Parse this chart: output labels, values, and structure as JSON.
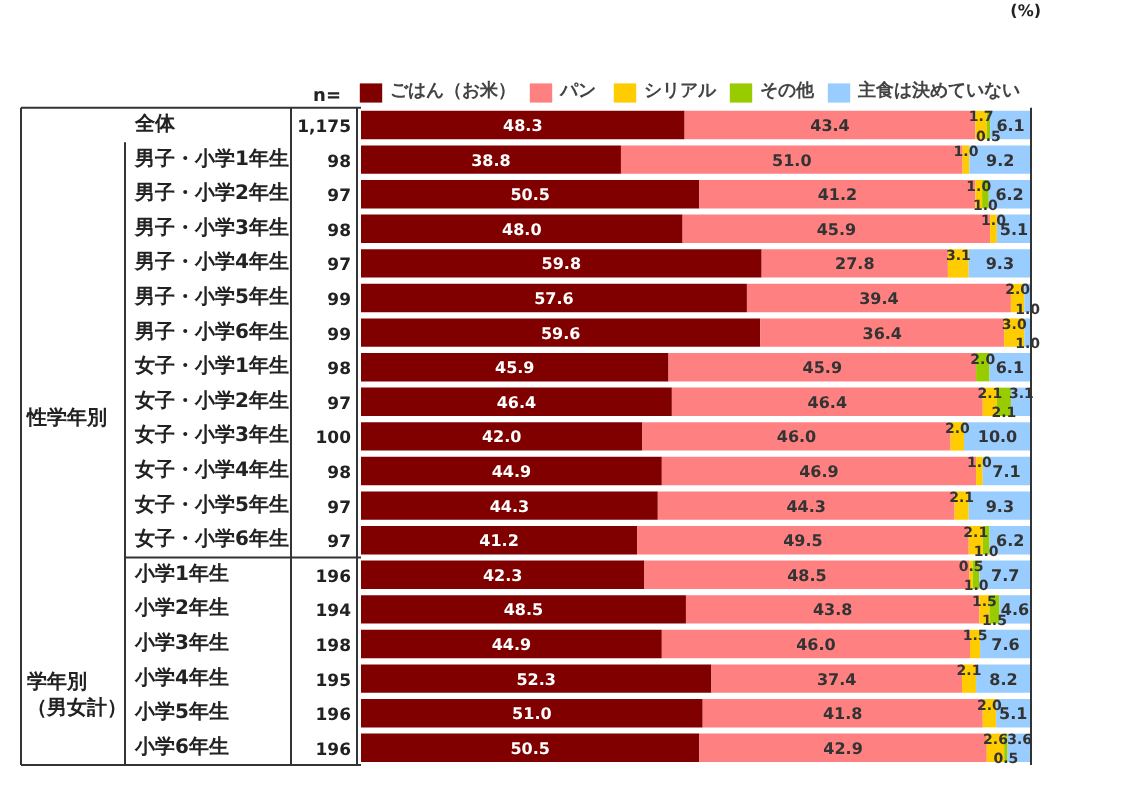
{
  "chart_data": {
    "type": "bar",
    "orientation": "horizontal",
    "stacked": true,
    "legend": "top",
    "grid": false,
    "tick_labels": false,
    "categories": [
      "全体",
      "男子・小学1年生",
      "男子・小学2年生",
      "男子・小学3年生",
      "男子・小学4年生",
      "男子・小学5年生",
      "男子・小学6年生",
      "女子・小学1年生",
      "女子・小学2年生",
      "女子・小学3年生",
      "女子・小学4年生",
      "女子・小学5年生",
      "女子・小学6年生",
      "小学1年生",
      "小学2年生",
      "小学3年生",
      "小学4年生",
      "小学5年生",
      "小学6年生"
    ],
    "xlim": [
      0,
      100
    ],
    "series": [
      {
        "name": "ごはん（お米）",
        "color": "#800000",
        "values": [
          48.3,
          38.8,
          50.5,
          48.0,
          59.8,
          57.6,
          59.6,
          45.9,
          46.4,
          42.0,
          44.9,
          44.3,
          41.2,
          42.3,
          48.5,
          44.9,
          52.3,
          51.0,
          50.5
        ],
        "value_labels": [
          "48.3",
          "38.8",
          "50.5",
          "48.0",
          "59.8",
          "57.6",
          "59.6",
          "45.9",
          "46.4",
          "42.0",
          "44.9",
          "44.3",
          "41.2",
          "42.3",
          "48.5",
          "44.9",
          "52.3",
          "51.0",
          "50.5"
        ]
      },
      {
        "name": "パン",
        "color": "#ff8080",
        "values": [
          43.4,
          51.0,
          41.2,
          45.9,
          27.8,
          39.4,
          36.4,
          45.9,
          46.4,
          46.0,
          46.9,
          44.3,
          49.5,
          48.5,
          43.8,
          46.0,
          37.4,
          41.8,
          42.9
        ],
        "value_labels": [
          "43.4",
          "51.0",
          "41.2",
          "45.9",
          "27.8",
          "39.4",
          "36.4",
          "45.9",
          "46.4",
          "46.0",
          "46.9",
          "44.3",
          "49.5",
          "48.5",
          "43.8",
          "46.0",
          "37.4",
          "41.8",
          "42.9"
        ]
      },
      {
        "name": "シリアル",
        "color": "#ffcc00",
        "values": [
          1.7,
          1.0,
          1.0,
          1.0,
          3.1,
          2.0,
          3.0,
          null,
          2.1,
          2.0,
          1.0,
          2.1,
          2.1,
          0.5,
          1.5,
          1.5,
          2.1,
          2.0,
          2.6
        ],
        "value_labels": [
          "1.7",
          "1.0",
          "1.0",
          "1.0",
          "3.1",
          "2.0",
          "3.0",
          null,
          "2.1",
          "2.0",
          "1.0",
          "2.1",
          "2.1",
          "0.5",
          "1.5",
          "1.5",
          "2.1",
          "2.0",
          "2.6"
        ]
      },
      {
        "name": "その他",
        "color": "#99cc00",
        "values": [
          0.5,
          null,
          1.0,
          null,
          null,
          null,
          null,
          2.0,
          2.1,
          null,
          null,
          null,
          1.0,
          1.0,
          1.5,
          null,
          null,
          null,
          0.5
        ],
        "value_labels": [
          "0.5",
          null,
          "1.0",
          null,
          null,
          null,
          null,
          "2.0",
          "2.1",
          null,
          null,
          null,
          "1.0",
          "1.0",
          "1.5",
          null,
          null,
          null,
          "0.5"
        ]
      },
      {
        "name": "主食は決めていない",
        "color": "#99ccff",
        "values": [
          6.1,
          9.2,
          6.2,
          5.1,
          9.3,
          1.0,
          1.0,
          6.1,
          3.1,
          10.0,
          7.1,
          9.3,
          6.2,
          7.7,
          4.6,
          7.6,
          8.2,
          5.1,
          3.6
        ],
        "value_labels": [
          "6.1",
          "9.2",
          "6.2",
          "5.1",
          "9.3",
          "1.0",
          "1.0",
          "6.1",
          "3.1",
          "10.0",
          "7.1",
          "9.3",
          "6.2",
          "7.7",
          "4.6",
          "7.6",
          "8.2",
          "5.1",
          "3.6"
        ]
      }
    ],
    "annotations": [
      "(%)",
      "n=",
      "1,175",
      "98",
      "97",
      "98",
      "97",
      "99",
      "99",
      "98",
      "97",
      "100",
      "98",
      "97",
      "97",
      "196",
      "194",
      "198",
      "195",
      "196",
      "196",
      "性学年別",
      "学年別（男女計）"
    ]
  }
}
